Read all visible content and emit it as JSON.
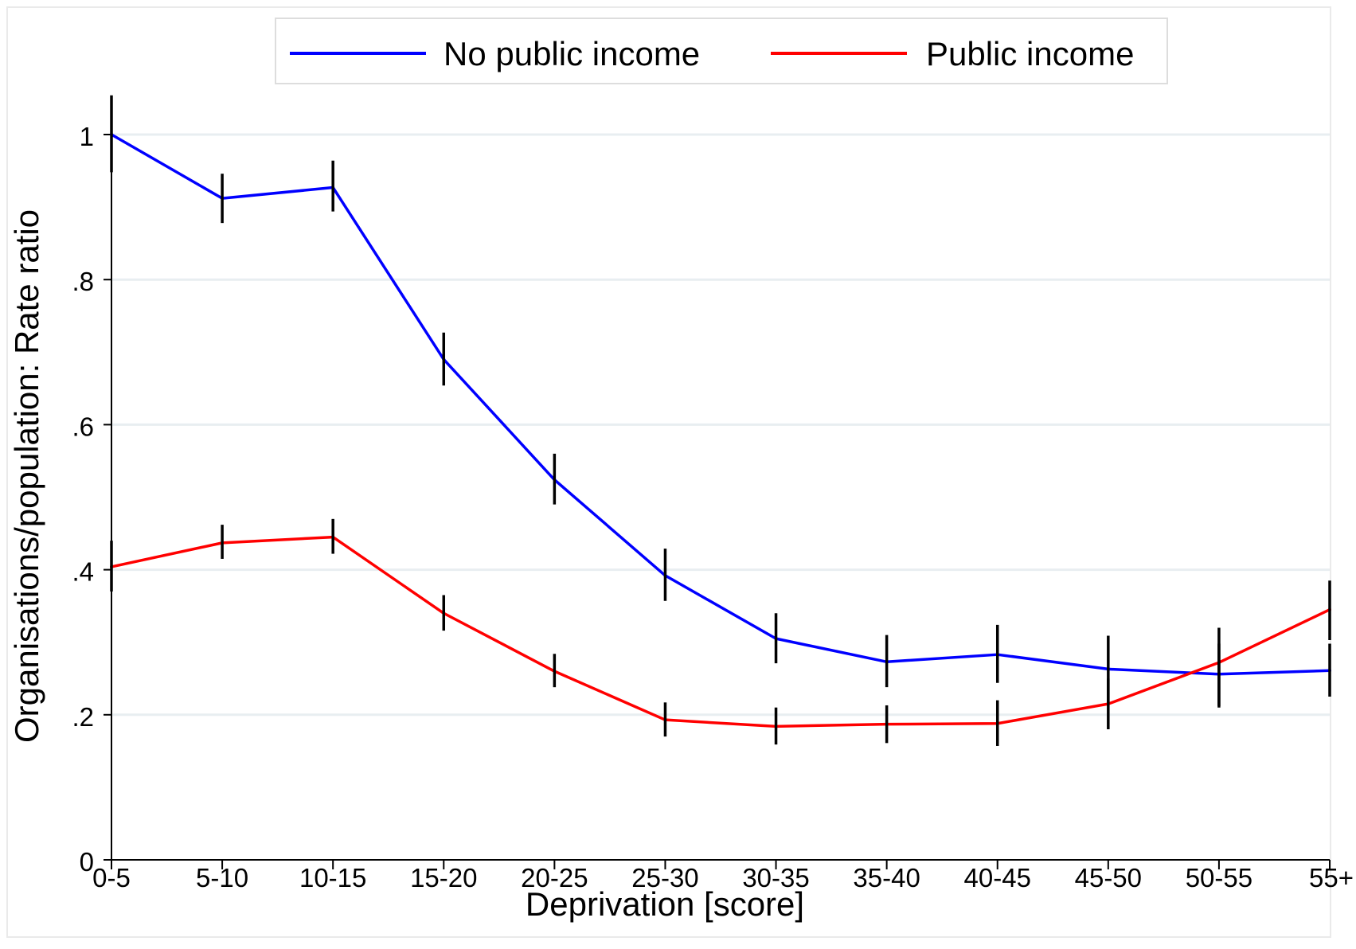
{
  "chart_data": {
    "type": "line",
    "title": "",
    "xlabel": "Deprivation [score]",
    "ylabel": "Organisations/population:  Rate ratio",
    "categories": [
      "0-5",
      "5-10",
      "10-15",
      "15-20",
      "20-25",
      "25-30",
      "30-35",
      "35-40",
      "40-45",
      "45-50",
      "50-55",
      "55+"
    ],
    "ylim": [
      0,
      1.05
    ],
    "yticks": [
      {
        "value": 0,
        "label": "0"
      },
      {
        "value": 0.2,
        "label": ".2"
      },
      {
        "value": 0.4,
        "label": ".4"
      },
      {
        "value": 0.6,
        "label": ".6"
      },
      {
        "value": 0.8,
        "label": ".8"
      },
      {
        "value": 1,
        "label": "1"
      }
    ],
    "grid": true,
    "legend_position": "top",
    "series": [
      {
        "name": "No public income",
        "color": "#0000ff",
        "values": [
          1.0,
          0.912,
          0.927,
          0.69,
          0.524,
          0.392,
          0.305,
          0.273,
          0.283,
          0.263,
          0.256,
          0.261
        ],
        "ci_low": [
          0.948,
          0.878,
          0.894,
          0.654,
          0.49,
          0.357,
          0.271,
          0.238,
          0.244,
          0.217,
          0.21,
          0.225
        ],
        "ci_high": [
          1.054,
          0.946,
          0.964,
          0.727,
          0.56,
          0.429,
          0.34,
          0.31,
          0.324,
          0.309,
          0.32,
          0.298
        ]
      },
      {
        "name": "Public income",
        "color": "#ff0000",
        "values": [
          0.404,
          0.437,
          0.445,
          0.34,
          0.26,
          0.193,
          0.184,
          0.187,
          0.188,
          0.215,
          0.272,
          0.345
        ],
        "ci_low": [
          0.37,
          0.415,
          0.422,
          0.316,
          0.238,
          0.17,
          0.159,
          0.161,
          0.157,
          0.18,
          0.212,
          0.303
        ],
        "ci_high": [
          0.44,
          0.462,
          0.47,
          0.365,
          0.284,
          0.217,
          0.21,
          0.213,
          0.22,
          0.25,
          0.298,
          0.385
        ]
      }
    ]
  }
}
